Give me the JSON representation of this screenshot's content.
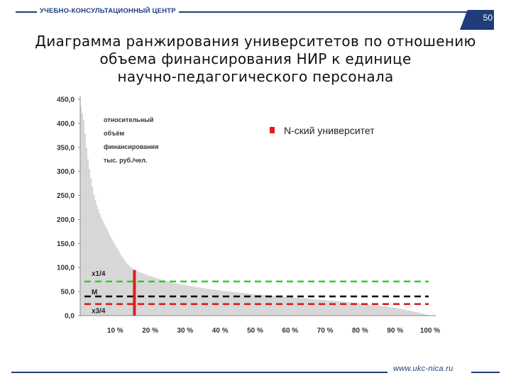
{
  "header": {
    "org_name": "УЧЕБНО-КОНСУЛЬТАЦИОННЫЙ ЦЕНТР",
    "page_number": "50"
  },
  "slide": {
    "title_lines": [
      "Диаграмма ранжирования университетов по отношению",
      "объема финансирования НИР к единице",
      "научно-педагогического персонала"
    ]
  },
  "footer": {
    "url": "www.ukc-nica.ru"
  },
  "colors": {
    "brand": "#1f3d7a",
    "university_bar": "#e01b1b",
    "q1_line": "#2ecc2e",
    "median_line": "#111111",
    "q3_line": "#e01b1b",
    "distribution_bars": "#d9d9d9"
  },
  "chart_data": {
    "type": "bar",
    "ylim": [
      0,
      450
    ],
    "y_ticks": [
      "450,0",
      "400,0",
      "350,0",
      "300,0",
      "250,0",
      "200,0",
      "150,0",
      "100,0",
      "50,0",
      "0,0"
    ],
    "x_ticks": [
      "10 %",
      "20 %",
      "30 %",
      "40 %",
      "50 %",
      "60 %",
      "70 %",
      "80 %",
      "90 %",
      "100 %"
    ],
    "xlim": [
      0,
      100
    ],
    "y_label_lines": [
      "относительный",
      "объём",
      "финансирования",
      "тыс. руб./чел."
    ],
    "distribution_profile": [
      [
        0,
        440
      ],
      [
        1,
        410
      ],
      [
        2,
        340
      ],
      [
        3,
        290
      ],
      [
        4,
        250
      ],
      [
        5,
        225
      ],
      [
        6,
        205
      ],
      [
        7,
        190
      ],
      [
        8,
        175
      ],
      [
        9,
        160
      ],
      [
        10,
        148
      ],
      [
        11,
        135
      ],
      [
        12,
        122
      ],
      [
        13,
        112
      ],
      [
        14,
        104
      ],
      [
        15,
        97
      ],
      [
        17,
        90
      ],
      [
        20,
        82
      ],
      [
        23,
        75
      ],
      [
        26,
        69
      ],
      [
        30,
        63
      ],
      [
        35,
        57
      ],
      [
        40,
        52
      ],
      [
        45,
        48
      ],
      [
        50,
        44
      ],
      [
        55,
        41
      ],
      [
        60,
        38
      ],
      [
        65,
        35
      ],
      [
        70,
        32
      ],
      [
        75,
        29
      ],
      [
        80,
        25
      ],
      [
        85,
        21
      ],
      [
        90,
        16
      ],
      [
        95,
        9
      ],
      [
        100,
        0
      ]
    ],
    "highlight": {
      "name": "N-ский университет",
      "x": 15.5,
      "value": 95
    },
    "reference_lines": [
      {
        "name": "x1/4",
        "value": 71
      },
      {
        "name": "M",
        "value": 40
      },
      {
        "name": "x3/4",
        "value": 24
      }
    ],
    "legend_position": "top-right",
    "grid": false
  }
}
